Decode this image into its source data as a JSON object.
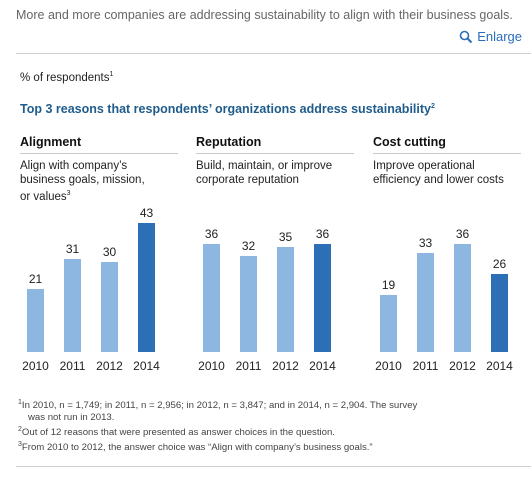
{
  "caption": "More and more companies are addressing sustainability to align with their business goals.",
  "enlarge_label": "Enlarge",
  "unit_label": "% of respondents",
  "unit_sup": "1",
  "subtitle": "Top 3 reasons that respondents’ organizations address sustainability",
  "subtitle_sup": "2",
  "colors": {
    "light_bar": "#8db6e0",
    "dark_bar": "#2c6fb6",
    "link": "#2a6ebb",
    "subtitle": "#1f5c8b"
  },
  "panels": [
    {
      "title": "Alignment",
      "desc_lines": [
        "Align with company’s",
        "business goals, mission,",
        "or values"
      ],
      "desc_sup": "3"
    },
    {
      "title": "Reputation",
      "desc_lines": [
        "Build, maintain, or improve",
        "corporate reputation"
      ],
      "desc_sup": ""
    },
    {
      "title": "Cost cutting",
      "desc_lines": [
        "Improve operational",
        "efficiency and lower costs"
      ],
      "desc_sup": ""
    }
  ],
  "chart_data": [
    {
      "type": "bar",
      "title": "Alignment",
      "categories": [
        "2010",
        "2011",
        "2012",
        "2014"
      ],
      "values": [
        21,
        31,
        30,
        43
      ],
      "highlight": "2014"
    },
    {
      "type": "bar",
      "title": "Reputation",
      "categories": [
        "2010",
        "2011",
        "2012",
        "2014"
      ],
      "values": [
        36,
        32,
        35,
        36
      ],
      "highlight": "2014"
    },
    {
      "type": "bar",
      "title": "Cost cutting",
      "categories": [
        "2010",
        "2011",
        "2012",
        "2014"
      ],
      "values": [
        19,
        33,
        36,
        26
      ],
      "highlight": "2014"
    }
  ],
  "footnotes": {
    "f1_sup": "1",
    "f1_line1": "In 2010, n = 1,749; in 2011, n = 2,956; in 2012, n = 3,847; and in 2014, n = 2,904. The survey",
    "f1_line2": "was not run in 2013.",
    "f2_sup": "2",
    "f2": "Out of 12 reasons that were presented as answer choices in the question.",
    "f3_sup": "3",
    "f3": "From 2010 to 2012, the answer choice was “Align with company’s business goals.”"
  }
}
